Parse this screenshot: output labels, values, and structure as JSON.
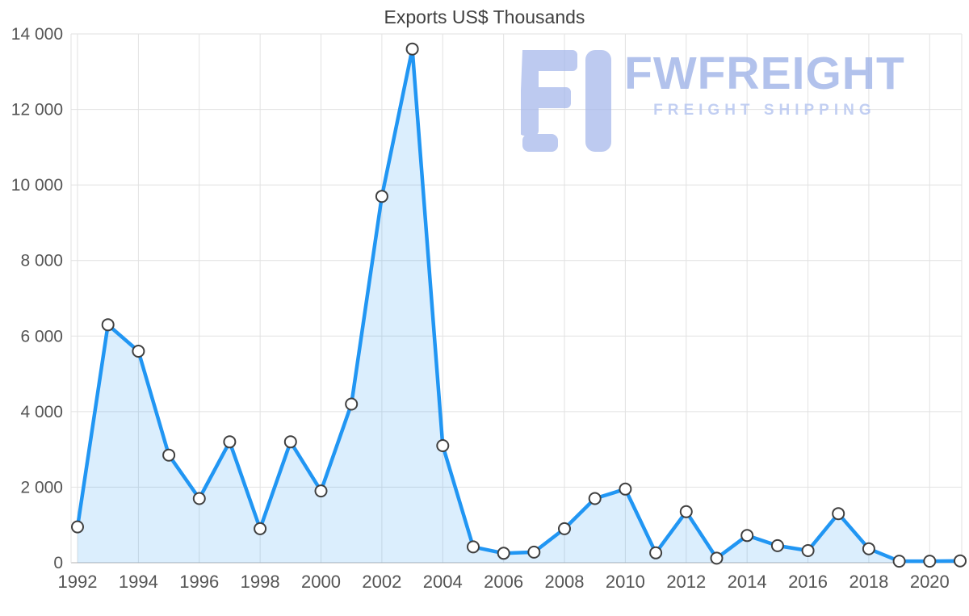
{
  "page": {
    "background": "#ffffff"
  },
  "chart_data": {
    "type": "area",
    "title": "Exports US$ Thousands",
    "x": [
      1992,
      1993,
      1994,
      1995,
      1996,
      1997,
      1998,
      1999,
      2000,
      2001,
      2002,
      2003,
      2004,
      2005,
      2006,
      2007,
      2008,
      2009,
      2010,
      2011,
      2012,
      2013,
      2014,
      2015,
      2016,
      2017,
      2018,
      2019,
      2020,
      2021
    ],
    "series": [
      {
        "name": "Exports",
        "values": [
          950,
          6300,
          5600,
          2850,
          1700,
          3200,
          900,
          3200,
          1900,
          4200,
          9700,
          13600,
          3100,
          420,
          250,
          280,
          900,
          1700,
          1950,
          260,
          1350,
          120,
          720,
          450,
          320,
          1300,
          370,
          40,
          40,
          50
        ]
      }
    ],
    "ylim": [
      0,
      14000
    ],
    "y_ticks": [
      {
        "value": 0,
        "label": "0"
      },
      {
        "value": 2000,
        "label": "2 000"
      },
      {
        "value": 4000,
        "label": "4 000"
      },
      {
        "value": 6000,
        "label": "6 000"
      },
      {
        "value": 8000,
        "label": "8 000"
      },
      {
        "value": 10000,
        "label": "10 000"
      },
      {
        "value": 12000,
        "label": "12 000"
      },
      {
        "value": 14000,
        "label": "14 000"
      }
    ],
    "x_ticks": [
      {
        "value": 1992,
        "label": "1992"
      },
      {
        "value": 1994,
        "label": "1994"
      },
      {
        "value": 1996,
        "label": "1996"
      },
      {
        "value": 1998,
        "label": "1998"
      },
      {
        "value": 2000,
        "label": "2000"
      },
      {
        "value": 2002,
        "label": "2002"
      },
      {
        "value": 2004,
        "label": "2004"
      },
      {
        "value": 2006,
        "label": "2006"
      },
      {
        "value": 2008,
        "label": "2008"
      },
      {
        "value": 2010,
        "label": "2010"
      },
      {
        "value": 2012,
        "label": "2012"
      },
      {
        "value": 2014,
        "label": "2014"
      },
      {
        "value": 2016,
        "label": "2016"
      },
      {
        "value": 2018,
        "label": "2018"
      },
      {
        "value": 2020,
        "label": "2020"
      }
    ],
    "grid": true,
    "legend": "none",
    "colors": {
      "line": "#2196f3",
      "fill": "rgba(33,150,243,0.16)",
      "marker_fill": "#ffffff",
      "marker_stroke": "#3f3f3f",
      "grid": "#e2e2e2",
      "axis": "#b0b0b0",
      "tick_label": "#555555",
      "title": "#404040"
    }
  },
  "watermark": {
    "brand": "FWFREIGHT",
    "tagline": "FREIGHT SHIPPING",
    "logo_icon": "fwfreight-logo-icon",
    "color": "#a3b5ea",
    "tagline_color": "#b4c4f0"
  }
}
